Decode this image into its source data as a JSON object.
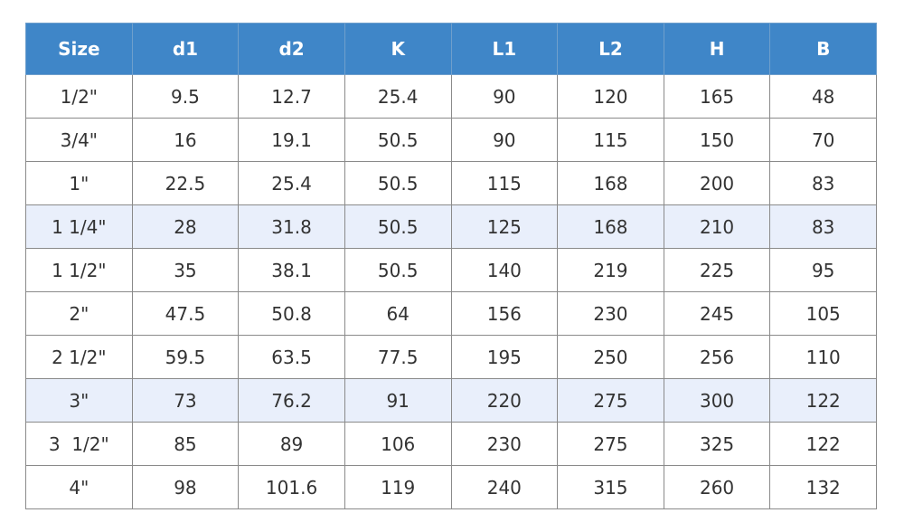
{
  "table": {
    "header": [
      "Size",
      "d1",
      "d2",
      "K",
      "L1",
      "L2",
      "H",
      "B"
    ],
    "rows": [
      [
        "1/2\"",
        "9.5",
        "12.7",
        "25.4",
        "90",
        "120",
        "165",
        "48"
      ],
      [
        "3/4\"",
        "16",
        "19.1",
        "50.5",
        "90",
        "115",
        "150",
        "70"
      ],
      [
        "1\"",
        "22.5",
        "25.4",
        "50.5",
        "115",
        "168",
        "200",
        "83"
      ],
      [
        "1 1/4\"",
        "28",
        "31.8",
        "50.5",
        "125",
        "168",
        "210",
        "83"
      ],
      [
        "1 1/2\"",
        "35",
        "38.1",
        "50.5",
        "140",
        "219",
        "225",
        "95"
      ],
      [
        "2\"",
        "47.5",
        "50.8",
        "64",
        "156",
        "230",
        "245",
        "105"
      ],
      [
        "2 1/2\"",
        "59.5",
        "63.5",
        "77.5",
        "195",
        "250",
        "256",
        "110"
      ],
      [
        "3\"",
        "73",
        "76.2",
        "91",
        "220",
        "275",
        "300",
        "122"
      ],
      [
        "3  1/2\"",
        "85",
        "89",
        "106",
        "230",
        "275",
        "325",
        "122"
      ],
      [
        "4\"",
        "98",
        "101.6",
        "119",
        "240",
        "315",
        "260",
        "132"
      ]
    ]
  }
}
